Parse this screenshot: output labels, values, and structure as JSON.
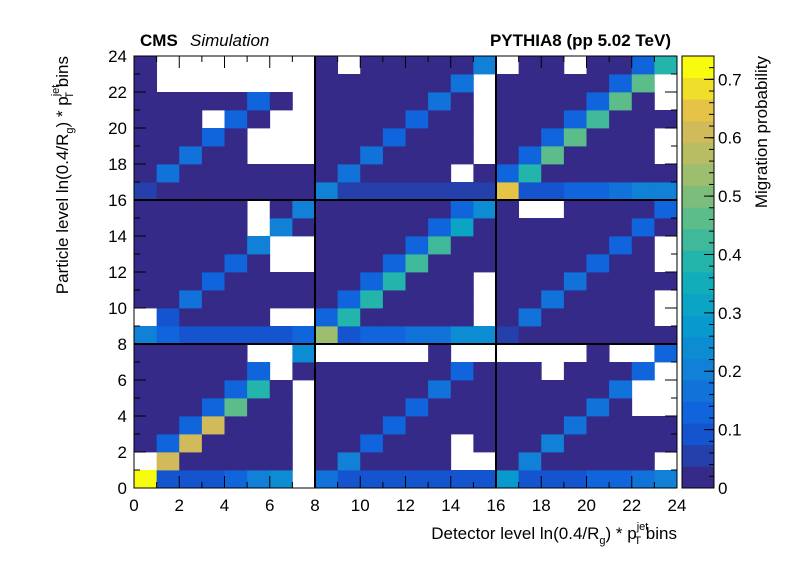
{
  "header": {
    "experiment": "CMS",
    "status": "Simulation",
    "generator": "PYTHIA8 (pp 5.02 TeV)"
  },
  "chart_data": {
    "type": "heatmap",
    "xlabel": {
      "pre": "Detector level ln(0.4/R",
      "sub": "g",
      "mid": ") * p",
      "sup": "jet",
      "sub2": "T",
      "post": " bins"
    },
    "ylabel": {
      "pre": "Particle level ln(0.4/R",
      "sub": "g",
      "mid": ") * p",
      "sup": "jet",
      "sub2": "T",
      "post": " bins"
    },
    "zlabel": "Migration probability",
    "xlim": [
      0,
      24
    ],
    "ylim": [
      0,
      24
    ],
    "zlim": [
      0,
      0.74
    ],
    "x_ticks": [
      0,
      2,
      4,
      6,
      8,
      10,
      12,
      14,
      16,
      18,
      20,
      22,
      24
    ],
    "y_ticks": [
      0,
      2,
      4,
      6,
      8,
      10,
      12,
      14,
      16,
      18,
      20,
      22,
      24
    ],
    "z_ticks": [
      0,
      0.1,
      0.2,
      0.3,
      0.4,
      0.5,
      0.6,
      0.7
    ],
    "block_boundaries": [
      8,
      16
    ],
    "blocks": 3,
    "block_size": 8,
    "palette": "kBird",
    "diagonal_blocks": [
      {
        "diag": [
          0.74,
          0.62,
          0.62,
          0.62,
          0.48,
          0.4,
          0.38,
          0.24
        ],
        "first_row": [
          0.74,
          0.09,
          0.09,
          0.1,
          0.12,
          0.22,
          0.25,
          0.27
        ]
      },
      {
        "diag": [
          0.55,
          0.4,
          0.4,
          0.4,
          0.42,
          0.42,
          0.32,
          0.23
        ],
        "first_row": [
          0.55,
          0.1,
          0.13,
          0.13,
          0.16,
          0.18,
          0.25,
          0.25
        ]
      },
      {
        "diag": [
          0.65,
          0.37,
          0.48,
          0.48,
          0.43,
          0.48,
          0.48,
          0.37
        ],
        "first_row": [
          0.65,
          0.08,
          0.08,
          0.12,
          0.13,
          0.18,
          0.2,
          0.22
        ]
      }
    ],
    "lower_blocks": [
      {
        "first_row": [
          0.15,
          0.08,
          0.08,
          0.08,
          0.08,
          0.08,
          0.08,
          0.08
        ],
        "first_col": [
          0.15,
          0.02,
          0.02,
          0.02,
          0.02,
          0.02,
          0.02,
          0.02
        ],
        "diag": [
          0.15,
          0.2,
          0.13,
          0.13,
          0.13,
          0.15,
          0.13,
          0.13
        ]
      },
      {
        "first_row": [
          0.28,
          0.1,
          0.1,
          0.1,
          0.12,
          0.14,
          0.16,
          0.2
        ],
        "first_col": [
          0.28,
          0.02,
          0.02,
          0.02,
          0.02,
          0.02,
          0.02,
          0.02
        ],
        "diag": [
          0.28,
          0.22,
          0.2,
          0.18,
          0.15,
          0.15,
          0.14,
          0.14
        ]
      },
      {
        "first_row": [
          0.05,
          0.02,
          0.02,
          0.02,
          0.02,
          0.02,
          0.02,
          0.02
        ],
        "first_col": [
          0.05,
          0.02,
          0.02,
          0.02,
          0.02,
          0.02,
          0.02,
          0.02
        ],
        "diag": [
          0.05,
          0.15,
          0.15,
          0.15,
          0.13,
          0.13,
          0.13,
          0.13
        ]
      }
    ],
    "upper_blocks": [
      {
        "first_row": [
          0.22,
          0.12,
          0.08,
          0.08,
          0.08,
          0.08,
          0.1,
          0.12
        ],
        "first_col": [
          0.08,
          0.02,
          0.02,
          0.02,
          0.02,
          0.02,
          0.02,
          0.02
        ],
        "diag": [
          0.08,
          0.1,
          0.15,
          0.13,
          0.13,
          0.2,
          0.2,
          0.22
        ]
      },
      {
        "first_row": [
          0.05,
          0.02,
          0.02,
          0.02,
          0.02,
          0.02,
          0.02,
          0.02
        ],
        "first_col": [
          0.05,
          0.02,
          0.02,
          0.02,
          0.02,
          0.02,
          0.02,
          0.02
        ],
        "diag": [
          0.05,
          0.15,
          0.15,
          0.12,
          0.13,
          0.13,
          0.2,
          0.22
        ]
      },
      {
        "first_row": [
          0.2,
          0.05,
          0.05,
          0.05,
          0.05,
          0.05,
          0.05,
          0.05
        ],
        "first_col": [
          0.02,
          0.02,
          0.02,
          0.02,
          0.02,
          0.02,
          0.02,
          0.02
        ],
        "diag": [
          0.05,
          0.15,
          0.15,
          0.13,
          0.13,
          0.15,
          0.15,
          0.2
        ]
      }
    ],
    "empty_cells": [
      [
        0,
        1
      ],
      [
        7,
        0
      ],
      [
        7,
        1
      ],
      [
        7,
        2
      ],
      [
        7,
        3
      ],
      [
        7,
        4
      ],
      [
        7,
        5
      ],
      [
        5,
        7
      ],
      [
        6,
        7
      ],
      [
        6,
        6
      ],
      [
        8,
        7
      ],
      [
        9,
        7
      ],
      [
        10,
        7
      ],
      [
        11,
        7
      ],
      [
        12,
        7
      ],
      [
        14,
        7
      ],
      [
        15,
        7
      ],
      [
        14,
        1
      ],
      [
        15,
        1
      ],
      [
        14,
        2
      ],
      [
        16,
        7
      ],
      [
        17,
        7
      ],
      [
        18,
        7
      ],
      [
        19,
        7
      ],
      [
        21,
        7
      ],
      [
        22,
        7
      ],
      [
        18,
        6
      ],
      [
        22,
        4
      ],
      [
        23,
        4
      ],
      [
        22,
        5
      ],
      [
        23,
        5
      ],
      [
        23,
        6
      ],
      [
        23,
        1
      ],
      [
        0,
        9
      ],
      [
        6,
        9
      ],
      [
        7,
        9
      ],
      [
        15,
        9
      ],
      [
        15,
        10
      ],
      [
        15,
        11
      ],
      [
        5,
        14
      ],
      [
        5,
        15
      ],
      [
        6,
        12
      ],
      [
        6,
        13
      ],
      [
        7,
        12
      ],
      [
        7,
        13
      ],
      [
        17,
        15
      ],
      [
        18,
        15
      ],
      [
        23,
        9
      ],
      [
        23,
        10
      ],
      [
        23,
        12
      ],
      [
        23,
        13
      ],
      [
        1,
        22
      ],
      [
        2,
        22
      ],
      [
        3,
        22
      ],
      [
        4,
        22
      ],
      [
        5,
        22
      ],
      [
        6,
        22
      ],
      [
        1,
        23
      ],
      [
        2,
        23
      ],
      [
        3,
        23
      ],
      [
        4,
        23
      ],
      [
        5,
        23
      ],
      [
        6,
        23
      ],
      [
        7,
        23
      ],
      [
        7,
        22
      ],
      [
        7,
        21
      ],
      [
        7,
        20
      ],
      [
        7,
        19
      ],
      [
        7,
        18
      ],
      [
        6,
        20
      ],
      [
        6,
        19
      ],
      [
        6,
        18
      ],
      [
        5,
        19
      ],
      [
        5,
        18
      ],
      [
        3,
        20
      ],
      [
        9,
        23
      ],
      [
        15,
        22
      ],
      [
        15,
        21
      ],
      [
        15,
        20
      ],
      [
        15,
        19
      ],
      [
        15,
        18
      ],
      [
        14,
        17
      ],
      [
        16,
        23
      ],
      [
        19,
        23
      ],
      [
        23,
        22
      ],
      [
        23,
        21
      ],
      [
        23,
        19
      ],
      [
        23,
        18
      ]
    ]
  }
}
